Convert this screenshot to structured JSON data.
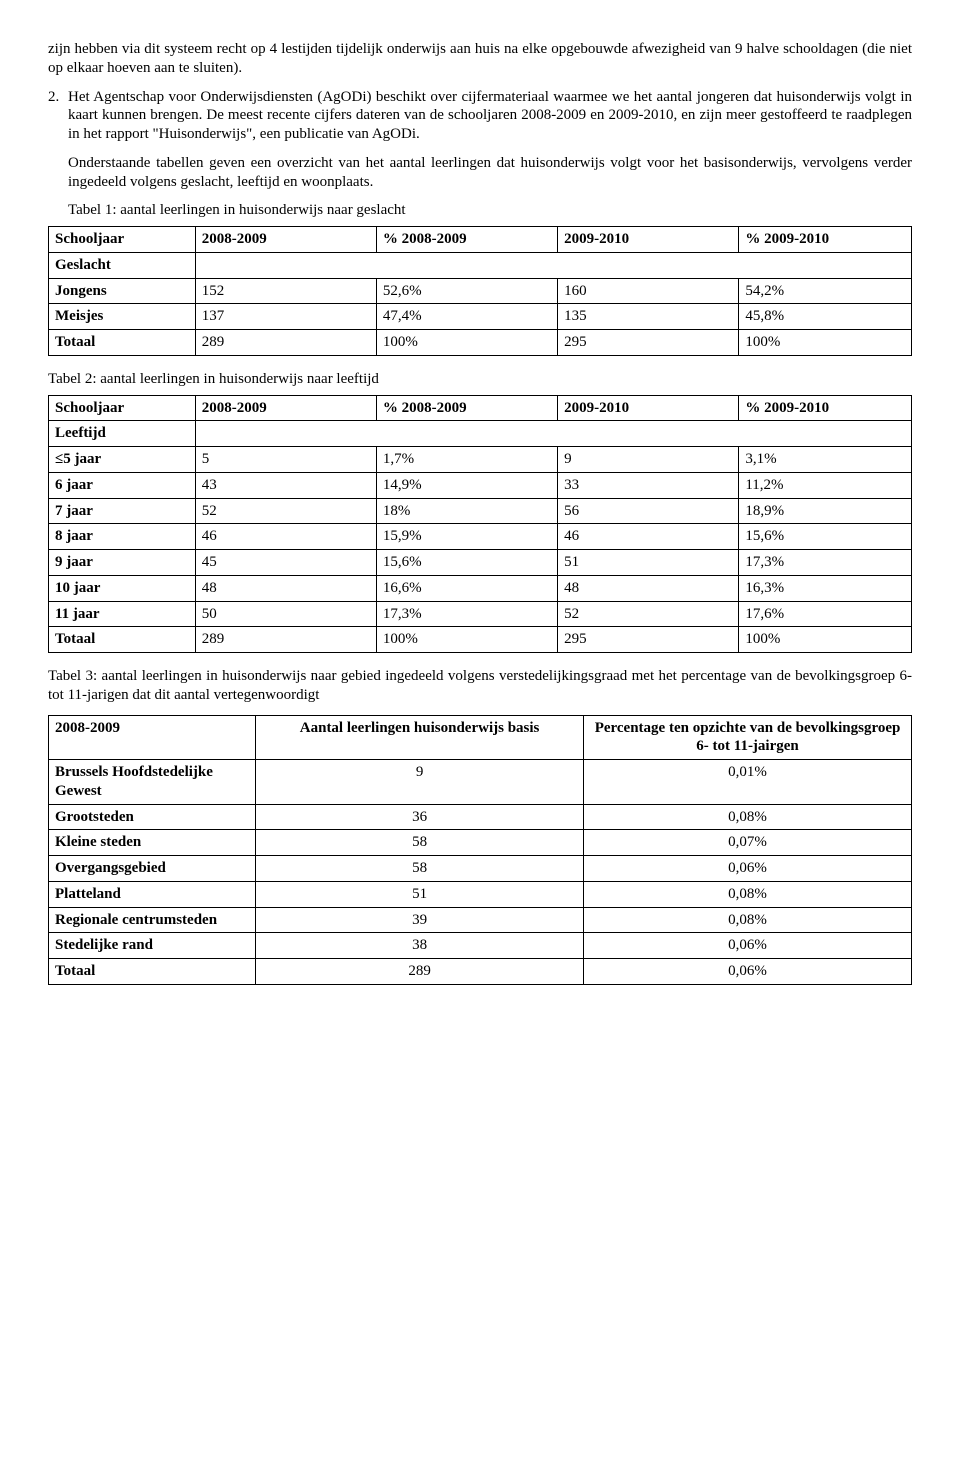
{
  "paragraphs": {
    "p1": "zijn hebben via dit systeem recht op 4 lestijden tijdelijk onderwijs aan huis na elke opgebouwde afwezigheid van 9 halve schooldagen (die niet op elkaar hoeven aan te sluiten).",
    "p2_num": "2.",
    "p2a": "Het Agentschap voor Onderwijsdiensten (AgODi) beschikt over cijfermateriaal waarmee we het aantal jongeren dat huisonderwijs volgt in kaart kunnen brengen. De meest recente cijfers dateren van de schooljaren 2008-2009 en 2009-2010, en zijn meer gestoffeerd te raadplegen in het rapport \"Huisonderwijs\", een publicatie van AgODi.",
    "p2b": "Onderstaande tabellen geven een overzicht van het aantal leerlingen dat huisonderwijs volgt voor het basisonderwijs, vervolgens verder ingedeeld volgens geslacht, leeftijd en woonplaats.",
    "t1_caption": "Tabel 1: aantal leerlingen in huisonderwijs naar geslacht",
    "t2_caption": "Tabel 2: aantal leerlingen in huisonderwijs naar leeftijd",
    "t3_caption": "Tabel 3: aantal leerlingen in huisonderwijs naar gebied ingedeeld volgens verstedelijkingsgraad met het percentage van de bevolkingsgroep 6- tot 11-jarigen dat dit aantal vertegenwoordigt"
  },
  "table1": {
    "headers": [
      "Schooljaar",
      "2008-2009",
      "% 2008-2009",
      "2009-2010",
      "% 2009-2010"
    ],
    "subhead": "Geslacht",
    "rows": [
      [
        "Jongens",
        "152",
        "52,6%",
        "160",
        "54,2%"
      ],
      [
        "Meisjes",
        "137",
        "47,4%",
        "135",
        "45,8%"
      ],
      [
        "Totaal",
        "289",
        "100%",
        "295",
        "100%"
      ]
    ],
    "col_widths": [
      "17%",
      "21%",
      "21%",
      "21%",
      "20%"
    ]
  },
  "table2": {
    "headers": [
      "Schooljaar",
      "2008-2009",
      "% 2008-2009",
      "2009-2010",
      "% 2009-2010"
    ],
    "subhead": "Leeftijd",
    "rows": [
      [
        "≤5 jaar",
        "5",
        "1,7%",
        "9",
        "3,1%"
      ],
      [
        "6 jaar",
        "43",
        "14,9%",
        "33",
        "11,2%"
      ],
      [
        "7 jaar",
        "52",
        "18%",
        "56",
        "18,9%"
      ],
      [
        "8 jaar",
        "46",
        "15,9%",
        "46",
        "15,6%"
      ],
      [
        "9 jaar",
        "45",
        "15,6%",
        "51",
        "17,3%"
      ],
      [
        "10 jaar",
        "48",
        "16,6%",
        "48",
        "16,3%"
      ],
      [
        "11 jaar",
        "50",
        "17,3%",
        "52",
        "17,6%"
      ],
      [
        "Totaal",
        "289",
        "100%",
        "295",
        "100%"
      ]
    ],
    "col_widths": [
      "17%",
      "21%",
      "21%",
      "21%",
      "20%"
    ]
  },
  "table3": {
    "headers": [
      "2008-2009",
      "Aantal leerlingen huisonderwijs basis",
      "Percentage ten opzichte van de bevolkingsgroep 6- tot 11-jairgen"
    ],
    "rows": [
      [
        "Brussels Hoofdstedelijke Gewest",
        "9",
        "0,01%"
      ],
      [
        "Grootsteden",
        "36",
        "0,08%"
      ],
      [
        "Kleine steden",
        "58",
        "0,07%"
      ],
      [
        "Overgangsgebied",
        "58",
        "0,06%"
      ],
      [
        "Platteland",
        "51",
        "0,08%"
      ],
      [
        "Regionale centrumsteden",
        "39",
        "0,08%"
      ],
      [
        "Stedelijke rand",
        "38",
        "0,06%"
      ],
      [
        "Totaal",
        "289",
        "0,06%"
      ]
    ],
    "col_widths": [
      "24%",
      "38%",
      "38%"
    ]
  }
}
